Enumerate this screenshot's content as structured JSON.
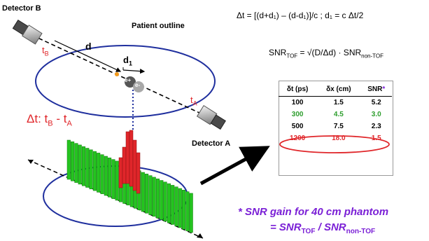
{
  "labels": {
    "detector_b": "Detector B",
    "detector_a": "Detector A",
    "patient_outline": "Patient outline",
    "t_b": "t",
    "t_b_sub": "B",
    "t_a": "t",
    "t_a_sub": "A",
    "d": "d",
    "d1": "d",
    "d1_sub": "1",
    "e_plus": "e+",
    "e_minus": "e-",
    "delta_t_prefix": "Δt:  t",
    "delta_t_b_sub": "B",
    "delta_t_mid": " - t",
    "delta_t_a_sub": "A"
  },
  "equations": {
    "eq1": "Δt = [(d+d₁) – (d-d₁)]/c ;    d₁ = c Δt/2",
    "eq2_prefix": "SNR",
    "eq2_sub1": "TOF",
    "eq2_mid": " = √(D/Δd) · SNR",
    "eq2_sub2": "non-TOF"
  },
  "table": {
    "headers": [
      "δt (ps)",
      "δx (cm)",
      "SNR"
    ],
    "header_star": "*",
    "rows": [
      {
        "dt": "100",
        "dx": "1.5",
        "snr": "5.2",
        "color": "#000000"
      },
      {
        "dt": "300",
        "dx": "4.5",
        "snr": "3.0",
        "color": "#2e9e2e"
      },
      {
        "dt": "500",
        "dx": "7.5",
        "snr": "2.3",
        "color": "#000000"
      },
      {
        "dt": "1200",
        "dx": "18.0",
        "snr": "1.5",
        "color": "#e0262a"
      }
    ]
  },
  "footnote": {
    "line1": "* SNR gain for 40 cm phantom",
    "line2_prefix": "= SNR",
    "line2_sub1": "TOF",
    "line2_mid": " / SNR",
    "line2_sub2": "non-TOF"
  },
  "colors": {
    "red": "#e0262a",
    "green": "#2e9e2e",
    "purple": "#7a1fd6",
    "blue_dots": "#1f2f9e",
    "annihilation": "#f39a1c"
  }
}
